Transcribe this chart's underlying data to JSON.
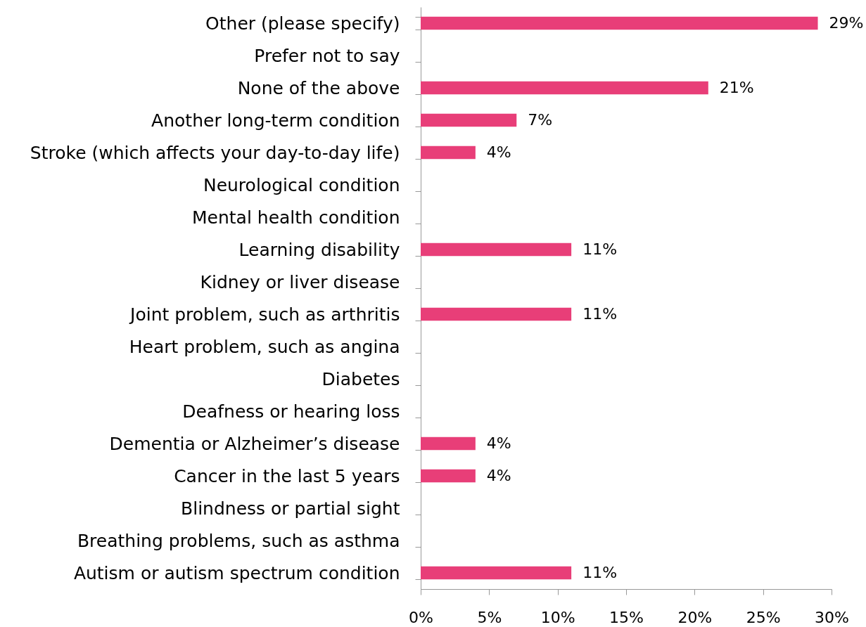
{
  "chart_data": {
    "type": "bar",
    "orientation": "horizontal",
    "categories": [
      "Other (please specify)",
      "Prefer not to say",
      "None of the above",
      "Another long-term condition",
      "Stroke (which affects your day-to-day life)",
      "Neurological condition",
      "Mental health condition",
      "Learning disability",
      "Kidney or liver disease",
      "Joint problem, such as arthritis",
      "Heart problem, such as angina",
      "Diabetes",
      "Deafness or hearing loss",
      "Dementia or Alzheimer’s disease",
      "Cancer in the last 5 years",
      "Blindness or partial sight",
      "Breathing problems, such as asthma",
      "Autism or autism spectrum condition"
    ],
    "values": [
      29,
      null,
      21,
      7,
      4,
      null,
      null,
      11,
      null,
      11,
      null,
      null,
      null,
      4,
      4,
      null,
      null,
      11
    ],
    "value_labels": [
      "29%",
      null,
      "21%",
      "7%",
      "4%",
      null,
      null,
      "11%",
      null,
      "11%",
      null,
      null,
      null,
      "4%",
      "4%",
      null,
      null,
      "11%"
    ],
    "color": "#e83e78",
    "xlim": [
      0,
      30
    ],
    "xticks": [
      {
        "value": 0,
        "label": "0%"
      },
      {
        "value": 5,
        "label": "5%"
      },
      {
        "value": 10,
        "label": "10%"
      },
      {
        "value": 15,
        "label": "15%"
      },
      {
        "value": 20,
        "label": "20%"
      },
      {
        "value": 25,
        "label": "25%"
      },
      {
        "value": 30,
        "label": "30%"
      }
    ]
  }
}
